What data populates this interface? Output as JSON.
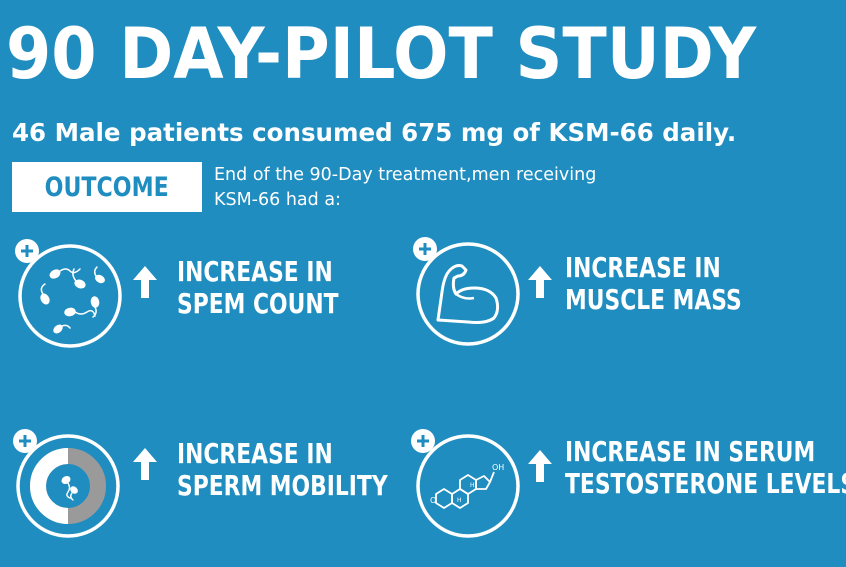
{
  "header": {
    "title": "90 DAY-PILOT STUDY",
    "subtitle": "46 Male patients consumed 675 mg of KSM-66 daily."
  },
  "outcome": {
    "badge": "OUTCOME",
    "desc_line1": "End of the 90-Day treatment,men receiving",
    "desc_line2": "KSM-66 had a:"
  },
  "items": [
    {
      "icon": "sperm-count-icon",
      "line1": "INCREASE IN",
      "line2": "SPEM COUNT"
    },
    {
      "icon": "muscle-arm-icon",
      "line1": "INCREASE IN",
      "line2": "MUSCLE MASS"
    },
    {
      "icon": "sperm-mobility-icon",
      "line1": "INCREASE IN",
      "line2": "SPERM MOBILITY"
    },
    {
      "icon": "testosterone-molecule-icon",
      "line1": "INCREASE IN SERUM",
      "line2": "TESTOSTERONE LEVELS"
    }
  ],
  "molecule": {
    "label_oh": "OH",
    "label_o": "O",
    "label_h": "H"
  },
  "colors": {
    "background": "#1f8dbf",
    "foreground": "#ffffff",
    "ring_gray": "#9a9a9a"
  }
}
